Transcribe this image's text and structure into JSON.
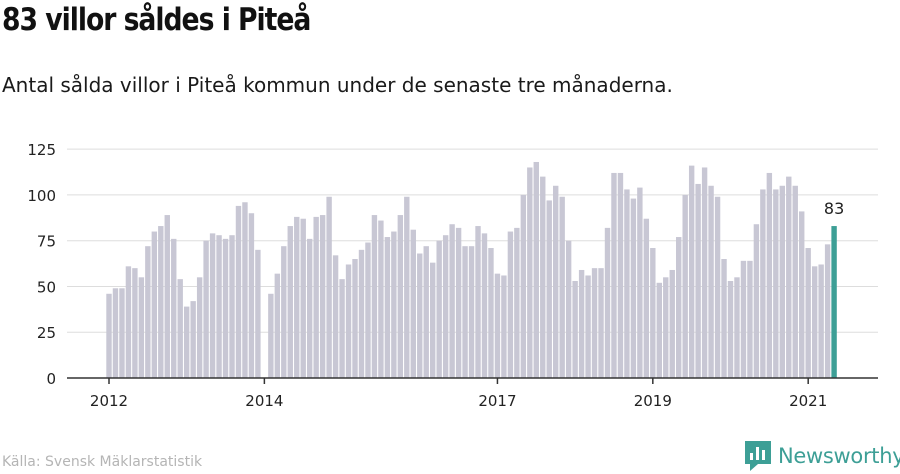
{
  "header": {
    "title": "83 villor såldes i Piteå",
    "subtitle": "Antal sålda villor i Piteå kommun under de senaste tre månaderna."
  },
  "footer": {
    "source": "Källa: Svensk Mäklarstatistik",
    "brand": "Newsworthy"
  },
  "colors": {
    "bar": "#c8c7d4",
    "highlight": "#3d9f96",
    "grid": "#dddddd",
    "axis": "#333333",
    "text": "#222222"
  },
  "chart_data": {
    "type": "bar",
    "x_start": "2012-01",
    "x_interval": "month",
    "values": [
      46,
      49,
      49,
      61,
      60,
      55,
      72,
      80,
      83,
      89,
      76,
      54,
      39,
      42,
      55,
      75,
      79,
      78,
      76,
      78,
      94,
      96,
      90,
      70,
      0,
      46,
      57,
      72,
      83,
      88,
      87,
      76,
      88,
      89,
      99,
      67,
      54,
      62,
      65,
      70,
      74,
      89,
      86,
      77,
      80,
      89,
      99,
      81,
      68,
      72,
      63,
      75,
      78,
      84,
      82,
      72,
      72,
      83,
      79,
      71,
      57,
      56,
      80,
      82,
      100,
      115,
      118,
      110,
      97,
      105,
      99,
      75,
      53,
      59,
      56,
      60,
      60,
      82,
      112,
      112,
      103,
      98,
      104,
      87,
      71,
      52,
      55,
      59,
      77,
      100,
      116,
      106,
      115,
      105,
      99,
      65,
      53,
      55,
      64,
      64,
      84,
      103,
      112,
      103,
      105,
      110,
      105,
      91,
      71,
      61,
      62,
      73,
      83
    ],
    "highlight_last": true,
    "highlight_label": "83",
    "xtick_labels": [
      "2012",
      "2014",
      "2017",
      "2019",
      "2021"
    ],
    "xtick_dates": [
      "2012-01",
      "2014-01",
      "2017-01",
      "2019-01",
      "2021-01"
    ],
    "yticks": [
      0,
      25,
      50,
      75,
      100,
      125
    ],
    "ylim": [
      0,
      130
    ],
    "grid": true
  }
}
